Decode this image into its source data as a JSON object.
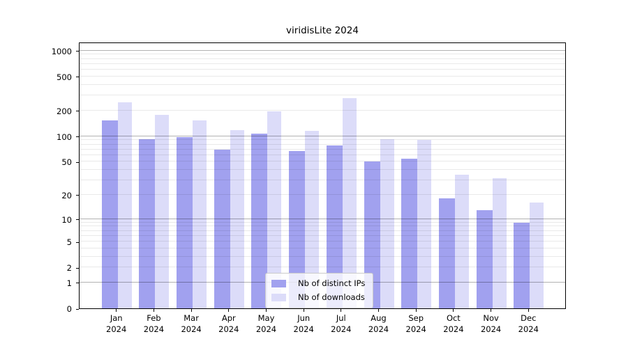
{
  "chart_data": {
    "type": "bar",
    "title": "viridisLite 2024",
    "categories": [
      "Jan",
      "Feb",
      "Mar",
      "Apr",
      "May",
      "Jun",
      "Jul",
      "Aug",
      "Sep",
      "Oct",
      "Nov",
      "Dec"
    ],
    "year_label": "2024",
    "series": [
      {
        "name": "Nb of distinct IPs",
        "color": "#a1a1ef",
        "values": [
          153,
          92,
          97,
          70,
          107,
          67,
          78,
          50,
          54,
          18,
          13,
          9
        ]
      },
      {
        "name": "Nb of downloads",
        "color": "#dcdcf9",
        "values": [
          250,
          177,
          153,
          119,
          196,
          115,
          277,
          93,
          90,
          35,
          32,
          16
        ]
      }
    ],
    "xlabel": "",
    "ylabel": "",
    "y_scale": "log1p",
    "ylim": [
      0,
      1270
    ],
    "y_ticks": [
      1000,
      500,
      200,
      100,
      50,
      20,
      10,
      5,
      2,
      1,
      0
    ],
    "y_gridlines_major": [
      1,
      10,
      100,
      1000
    ],
    "y_gridlines_minor": [
      2,
      3,
      4,
      5,
      6,
      7,
      8,
      9,
      20,
      30,
      40,
      50,
      60,
      70,
      80,
      90,
      200,
      300,
      400,
      500,
      600,
      700,
      800,
      900
    ],
    "grid": true,
    "legend_position": "lower center",
    "colors": {
      "bar_distinct_ips": "#a1a1ef",
      "bar_downloads": "#dcdcf9",
      "grid_major": "rgba(0,0,0,0.30)",
      "grid_minor": "rgba(0,0,0,0.085)",
      "axis": "#000000"
    }
  }
}
